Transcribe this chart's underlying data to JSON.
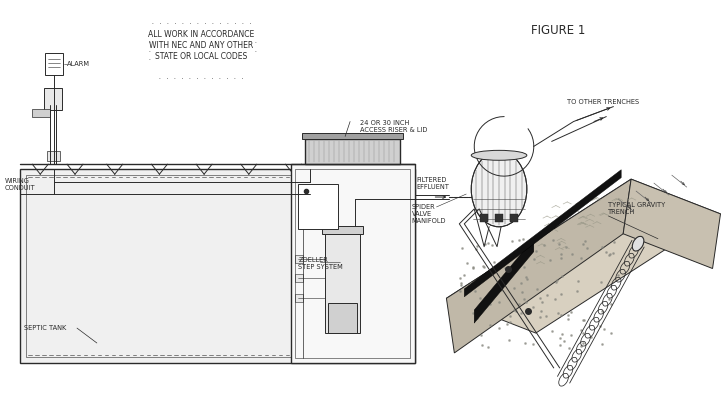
{
  "title": "FIGURE 1",
  "bg_color": "#ffffff",
  "line_color": "#2a2a2a",
  "fill_light": "#e8e8e8",
  "fill_mid": "#d0d0d0",
  "fill_dark": "#a0a0a0",
  "fill_tank": "#f0f0f0",
  "labels": {
    "alarm": "ALARM",
    "wiring_conduit": "WIRING\nCONDUIT",
    "septic_tank": "SEPTIC TANK",
    "zoeller_step": "ZOELLER\nSTEP SYSTEM",
    "filtered_effluent": "FILTERED\nEFFLUENT",
    "access_riser": "24 OR 30 INCH\nACCESS RISER & LID",
    "spider_valve": "SPIDER\nVALVE\nMANIFOLD",
    "to_other_trenches": "TO OTHER TRENCHES",
    "typical_gravity": "TYPICAL GRAVITY\nTRENCH",
    "nec_line1": "ALL WORK IN ACCORDANCE",
    "nec_line2": "WITH NEC AND ANY OTHER",
    "nec_line3": "STATE OR LOCAL CODES"
  },
  "font_sizes": {
    "title": 8.5,
    "label": 4.8,
    "notice": 5.5
  }
}
